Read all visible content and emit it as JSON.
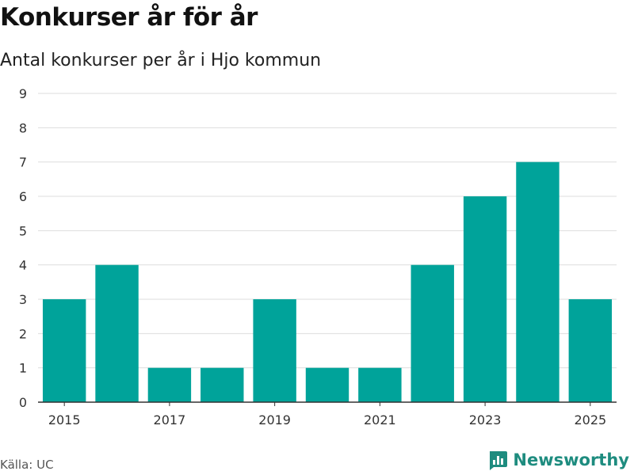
{
  "chart_data": {
    "type": "bar",
    "title": "Konkurser år för år",
    "subtitle": "Antal konkurser per år i Hjo kommun",
    "categories": [
      "2015",
      "2016",
      "2017",
      "2018",
      "2019",
      "2020",
      "2021",
      "2022",
      "2023",
      "2024",
      "2025"
    ],
    "values": [
      3,
      4,
      1,
      1,
      3,
      1,
      1,
      4,
      6,
      7,
      3
    ],
    "x_tick_labels": [
      "2015",
      "2017",
      "2019",
      "2021",
      "2023",
      "2025"
    ],
    "y_ticks": [
      0,
      1,
      2,
      3,
      4,
      5,
      6,
      7,
      8,
      9
    ],
    "ylim": [
      0,
      9
    ],
    "xlabel": "",
    "ylabel": "",
    "bar_color": "#00a39a",
    "grid": true
  },
  "footer": {
    "source": "Källa: UC",
    "brand": "Newsworthy",
    "brand_color": "#1e8c7f",
    "brand_icon": "bar-chart-logo-icon"
  }
}
